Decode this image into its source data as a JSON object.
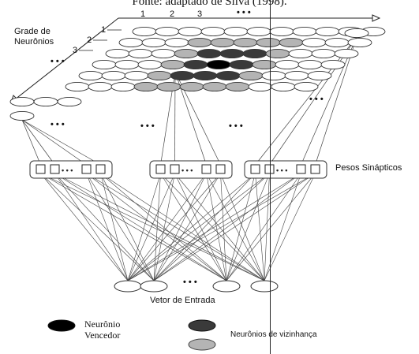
{
  "caption": "Fonte: adaptado de Silva (1998).",
  "grid": {
    "title_line1": "Grade de",
    "title_line2": "Neurônios",
    "col_indices": [
      "1",
      "2",
      "3",
      "• • •"
    ],
    "row_indices": [
      "1",
      "2",
      "3",
      "• • •"
    ],
    "rows": 6,
    "cols": 11,
    "winner": [
      3,
      5
    ],
    "dark_neighbors": [
      [
        2,
        4
      ],
      [
        2,
        5
      ],
      [
        2,
        6
      ],
      [
        3,
        4
      ],
      [
        3,
        6
      ],
      [
        4,
        4
      ],
      [
        4,
        5
      ],
      [
        4,
        6
      ]
    ],
    "light_neighbors": [
      [
        1,
        3
      ],
      [
        1,
        4
      ],
      [
        1,
        5
      ],
      [
        1,
        6
      ],
      [
        1,
        7
      ],
      [
        2,
        3
      ],
      [
        2,
        7
      ],
      [
        3,
        3
      ],
      [
        3,
        7
      ],
      [
        4,
        3
      ],
      [
        4,
        7
      ],
      [
        5,
        3
      ],
      [
        5,
        4
      ],
      [
        5,
        5
      ],
      [
        5,
        6
      ],
      [
        5,
        7
      ]
    ],
    "ellipsis": "• • •"
  },
  "weights": {
    "label": "Pesos Sinápticos",
    "ellipsis": "• • •"
  },
  "input": {
    "label": "Vetor de Entrada",
    "ellipsis": "• • •"
  },
  "legend": {
    "winner_line1": "Neurônio",
    "winner_line2": "Vencedor",
    "neighborhood": "Neurônios de vizinhança",
    "winner_color": "#000000",
    "dark_color": "#3a3a3a",
    "light_color": "#b4b4b4"
  }
}
